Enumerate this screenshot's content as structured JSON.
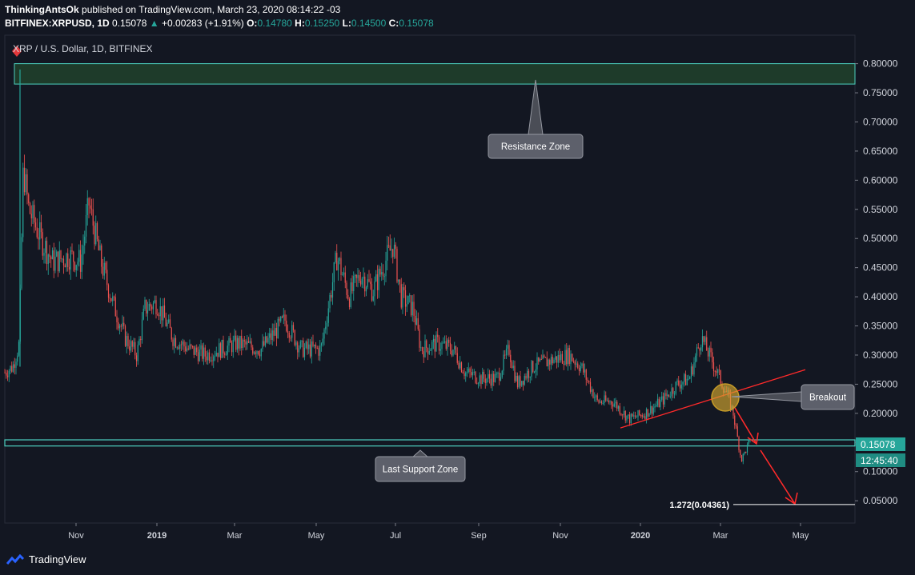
{
  "header": {
    "author": "ThinkingAntsOk",
    "published": "published on TradingView.com, March 23, 2020 08:14:22 -03",
    "symbol": "BITFINEX:XRPUSD, 1D",
    "last": "0.15078",
    "change": "+0.00283 (+1.91%)",
    "o_label": "O:",
    "o": "0.14780",
    "h_label": "H:",
    "h": "0.15250",
    "l_label": "L:",
    "l": "0.14500",
    "c_label": "C:",
    "c": "0.15078"
  },
  "colors": {
    "background": "#131722",
    "up": "#26a69a",
    "down": "#ef5350",
    "zone": "#4dd0c0",
    "annotation": "#ff2a2a"
  },
  "chart_data": {
    "type": "candlestick",
    "title": "XRP / U.S. Dollar, 1D, BITFINEX",
    "y_axis": {
      "min": 0.0,
      "max": 0.82,
      "ticks": [
        "0.80000",
        "0.75000",
        "0.70000",
        "0.65000",
        "0.60000",
        "0.55000",
        "0.50000",
        "0.45000",
        "0.40000",
        "0.35000",
        "0.30000",
        "0.25000",
        "0.20000",
        "0.15000",
        "0.10000",
        "0.05000"
      ]
    },
    "x_axis": {
      "ticks": [
        {
          "label": "Nov",
          "bold": false
        },
        {
          "label": "2019",
          "bold": true
        },
        {
          "label": "Mar",
          "bold": false
        },
        {
          "label": "May",
          "bold": false
        },
        {
          "label": "Jul",
          "bold": false
        },
        {
          "label": "Sep",
          "bold": false
        },
        {
          "label": "Nov",
          "bold": false
        },
        {
          "label": "2020",
          "bold": true
        },
        {
          "label": "Mar",
          "bold": false
        },
        {
          "label": "May",
          "bold": false
        }
      ]
    },
    "price_path": [
      [
        0,
        0.27
      ],
      [
        10,
        0.28
      ],
      [
        18,
        0.32
      ],
      [
        23,
        0.62
      ],
      [
        30,
        0.55
      ],
      [
        45,
        0.5
      ],
      [
        60,
        0.46
      ],
      [
        80,
        0.47
      ],
      [
        95,
        0.46
      ],
      [
        105,
        0.56
      ],
      [
        120,
        0.46
      ],
      [
        135,
        0.39
      ],
      [
        150,
        0.33
      ],
      [
        165,
        0.3
      ],
      [
        175,
        0.38
      ],
      [
        190,
        0.39
      ],
      [
        210,
        0.33
      ],
      [
        230,
        0.31
      ],
      [
        250,
        0.3
      ],
      [
        270,
        0.31
      ],
      [
        290,
        0.32
      ],
      [
        320,
        0.31
      ],
      [
        350,
        0.36
      ],
      [
        370,
        0.31
      ],
      [
        395,
        0.31
      ],
      [
        415,
        0.47
      ],
      [
        430,
        0.4
      ],
      [
        445,
        0.44
      ],
      [
        460,
        0.41
      ],
      [
        475,
        0.46
      ],
      [
        485,
        0.49
      ],
      [
        495,
        0.4
      ],
      [
        510,
        0.38
      ],
      [
        520,
        0.31
      ],
      [
        540,
        0.32
      ],
      [
        560,
        0.31
      ],
      [
        575,
        0.27
      ],
      [
        595,
        0.26
      ],
      [
        615,
        0.26
      ],
      [
        630,
        0.31
      ],
      [
        640,
        0.25
      ],
      [
        660,
        0.28
      ],
      [
        680,
        0.29
      ],
      [
        705,
        0.3
      ],
      [
        720,
        0.28
      ],
      [
        740,
        0.22
      ],
      [
        760,
        0.22
      ],
      [
        780,
        0.19
      ],
      [
        800,
        0.2
      ],
      [
        820,
        0.22
      ],
      [
        840,
        0.25
      ],
      [
        855,
        0.26
      ],
      [
        870,
        0.33
      ],
      [
        880,
        0.3
      ],
      [
        890,
        0.27
      ],
      [
        903,
        0.23
      ],
      [
        910,
        0.2
      ],
      [
        920,
        0.12
      ],
      [
        930,
        0.15
      ],
      [
        938,
        0.15
      ]
    ],
    "last_price": "0.15078",
    "countdown": "12:45:40",
    "resistance_zone": {
      "top": 0.8,
      "bottom": 0.765,
      "label": "Resistance Zone"
    },
    "support_zone": {
      "top": 0.1545,
      "bottom": 0.144,
      "label": "Last Support Zone"
    },
    "trendline": {
      "from": [
        0.175
      ],
      "to": [
        0.275
      ]
    },
    "breakout_label": "Breakout",
    "fib_label": "1.272(0.04361)",
    "fib_value": 0.0436
  },
  "footer": {
    "brand": "TradingView"
  }
}
